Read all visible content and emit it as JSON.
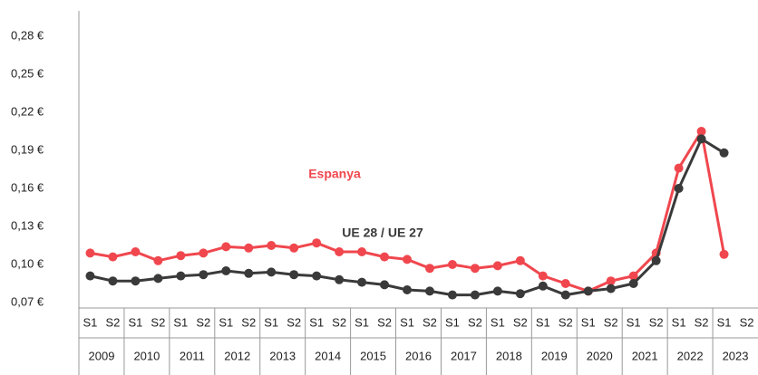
{
  "chart_data": {
    "type": "line",
    "categories": [
      "S1",
      "S2",
      "S1",
      "S2",
      "S1",
      "S2",
      "S1",
      "S2",
      "S1",
      "S2",
      "S1",
      "S2",
      "S1",
      "S2",
      "S1",
      "S2",
      "S1",
      "S2",
      "S1",
      "S2",
      "S1",
      "S2",
      "S1",
      "S2",
      "S1",
      "S2",
      "S1",
      "S2",
      "S1",
      "S2"
    ],
    "groups": [
      "2009",
      "2010",
      "2011",
      "2012",
      "2013",
      "2014",
      "2015",
      "2016",
      "2017",
      "2018",
      "2019",
      "2020",
      "2021",
      "2022",
      "2023"
    ],
    "series": [
      {
        "name": "Espanya",
        "color": "#f0474e",
        "values": [
          0.109,
          0.106,
          0.11,
          0.103,
          0.107,
          0.109,
          0.114,
          0.113,
          0.115,
          0.113,
          0.117,
          0.11,
          0.11,
          0.106,
          0.104,
          0.097,
          0.1,
          0.097,
          0.099,
          0.103,
          0.091,
          0.085,
          0.079,
          0.087,
          0.091,
          0.109,
          0.176,
          0.205,
          0.108,
          null
        ]
      },
      {
        "name": "UE 28 / UE 27",
        "color": "#3a3a3a",
        "values": [
          0.091,
          0.087,
          0.087,
          0.089,
          0.091,
          0.092,
          0.095,
          0.093,
          0.094,
          0.092,
          0.091,
          0.088,
          0.086,
          0.084,
          0.08,
          0.079,
          0.076,
          0.076,
          0.079,
          0.077,
          0.083,
          0.076,
          0.079,
          0.081,
          0.085,
          0.103,
          0.16,
          0.199,
          0.188,
          null
        ]
      }
    ],
    "ylim": [
      0.07,
      0.3
    ],
    "yticks": [
      {
        "value": 0.07,
        "label": "0,07 €"
      },
      {
        "value": 0.1,
        "label": "0,10 €"
      },
      {
        "value": 0.13,
        "label": "0,13 €"
      },
      {
        "value": 0.16,
        "label": "0,16 €"
      },
      {
        "value": 0.19,
        "label": "0,19 €"
      },
      {
        "value": 0.22,
        "label": "0,22 €"
      },
      {
        "value": 0.25,
        "label": "0,25 €"
      },
      {
        "value": 0.28,
        "label": "0,28 €"
      }
    ],
    "grid": false
  }
}
